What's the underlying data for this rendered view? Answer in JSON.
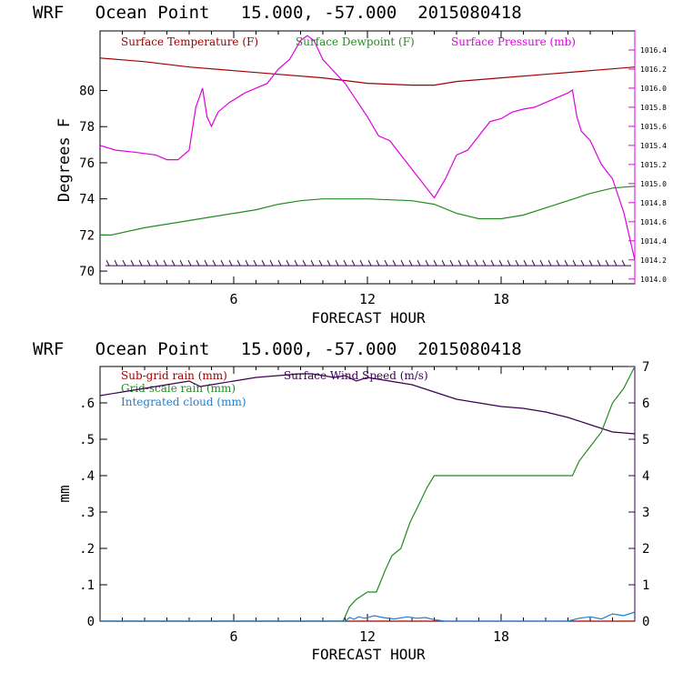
{
  "colors": {
    "temperature": "#a00000",
    "dewpoint": "#228b22",
    "pressure": "#e000e0",
    "subgrid": "#a00000",
    "gridscale": "#228b22",
    "cloud": "#1f7fd0",
    "wind": "#3a0050",
    "barbs": "#3a0050",
    "axis": "#000000"
  },
  "chart_data": [
    {
      "type": "line",
      "title": "WRF   Ocean Point   15.000, -57.000  2015080418",
      "xlabel": "FORECAST HOUR",
      "ylabel": "Degrees F",
      "xlim": [
        0,
        24
      ],
      "ylim": [
        69.3,
        83.3
      ],
      "y2lim": [
        1013.95,
        1016.6
      ],
      "x_ticks": [
        6,
        12,
        18
      ],
      "y_ticks": [
        70,
        72,
        74,
        76,
        78,
        80
      ],
      "y2_ticks": [
        "1014.0",
        "1014.2",
        "1014.4",
        "1014.6",
        "1014.8",
        "1015.0",
        "1015.2",
        "1015.4",
        "1015.6",
        "1015.8",
        "1016.0",
        "1016.2",
        "1016.4"
      ],
      "legend": [
        "Surface Temperature (F)",
        "Surface Dewpoint (F)",
        "Surface Pressure (mb)"
      ],
      "series": [
        {
          "name": "Surface Temperature (F)",
          "axis": "left",
          "x": [
            0,
            2,
            4,
            6,
            8,
            10,
            12,
            14,
            15,
            16,
            18,
            20,
            22,
            24
          ],
          "y": [
            81.8,
            81.6,
            81.3,
            81.1,
            80.9,
            80.7,
            80.4,
            80.3,
            80.3,
            80.5,
            80.7,
            80.9,
            81.1,
            81.3
          ]
        },
        {
          "name": "Surface Dewpoint (F)",
          "axis": "left",
          "x": [
            0,
            0.5,
            2,
            4,
            5,
            6,
            7,
            8,
            9,
            10,
            12,
            14,
            15,
            16,
            17,
            18,
            19,
            20,
            21,
            22,
            23,
            24
          ],
          "y": [
            72.0,
            72.0,
            72.4,
            72.8,
            73.0,
            73.2,
            73.4,
            73.7,
            73.9,
            74.0,
            74.0,
            73.9,
            73.7,
            73.2,
            72.9,
            72.9,
            73.1,
            73.5,
            73.9,
            74.3,
            74.6,
            74.7
          ]
        },
        {
          "name": "Surface Pressure (mb)",
          "axis": "right",
          "x": [
            0,
            0.7,
            1.5,
            2.5,
            3,
            3.5,
            4,
            4.3,
            4.6,
            4.8,
            5,
            5.3,
            5.8,
            6.5,
            7,
            7.5,
            8,
            8.5,
            9,
            9.3,
            9.6,
            10,
            11,
            12,
            12.5,
            13,
            14,
            15,
            15.5,
            16,
            16.5,
            17,
            17.5,
            18,
            18.5,
            19,
            19.5,
            20,
            20.5,
            21,
            21.2,
            21.4,
            21.6,
            22,
            22.5,
            23,
            23.5,
            24
          ],
          "y": [
            1015.4,
            1015.35,
            1015.33,
            1015.3,
            1015.25,
            1015.25,
            1015.35,
            1015.8,
            1016.0,
            1015.7,
            1015.6,
            1015.75,
            1015.85,
            1015.95,
            1016.0,
            1016.05,
            1016.2,
            1016.3,
            1016.5,
            1016.55,
            1016.5,
            1016.3,
            1016.05,
            1015.7,
            1015.5,
            1015.45,
            1015.15,
            1014.85,
            1015.05,
            1015.3,
            1015.35,
            1015.5,
            1015.65,
            1015.68,
            1015.75,
            1015.78,
            1015.8,
            1015.85,
            1015.9,
            1015.95,
            1015.98,
            1015.7,
            1015.55,
            1015.45,
            1015.2,
            1015.05,
            1014.7,
            1014.2
          ]
        }
      ]
    },
    {
      "type": "line",
      "title": "WRF   Ocean Point   15.000, -57.000  2015080418",
      "xlabel": "FORECAST HOUR",
      "ylabel": "mm",
      "xlim": [
        0,
        24
      ],
      "ylim": [
        0,
        0.7
      ],
      "y2lim": [
        0,
        7.0
      ],
      "x_ticks": [
        6,
        12,
        18
      ],
      "y_ticks": [
        0,
        0.1,
        0.2,
        0.3,
        0.4,
        0.5,
        0.6
      ],
      "y_tick_labels": [
        "0",
        ".1",
        ".2",
        ".3",
        ".4",
        ".5",
        ".6"
      ],
      "y2_ticks": [
        0,
        1,
        2,
        3,
        4,
        5,
        6,
        7
      ],
      "legend": [
        "Sub-grid rain (mm)",
        "Grid-scale rain (mm)",
        "Integrated cloud (mm)",
        "Surface Wind Speed (m/s)"
      ],
      "series": [
        {
          "name": "Surface Wind Speed (m/s)",
          "axis": "right",
          "x": [
            0,
            1,
            2,
            3,
            4,
            4.5,
            5,
            6,
            7,
            8,
            9,
            9.5,
            10,
            10.5,
            11,
            11.5,
            12,
            13,
            14,
            15,
            16,
            17,
            18,
            19,
            20,
            21,
            22,
            23,
            24
          ],
          "y": [
            6.2,
            6.3,
            6.4,
            6.5,
            6.6,
            6.45,
            6.5,
            6.6,
            6.7,
            6.75,
            6.8,
            6.8,
            6.75,
            6.7,
            6.75,
            6.6,
            6.7,
            6.6,
            6.5,
            6.3,
            6.1,
            6.0,
            5.9,
            5.85,
            5.75,
            5.6,
            5.4,
            5.2,
            5.15
          ]
        },
        {
          "name": "Grid-scale rain (mm)",
          "axis": "left",
          "x": [
            0,
            10.9,
            11.2,
            11.5,
            12.0,
            12.4,
            12.8,
            13.1,
            13.5,
            13.9,
            14.3,
            14.7,
            15.0,
            15.5,
            16,
            17,
            18,
            19,
            20,
            21.2,
            21.5,
            22,
            22.5,
            23,
            23.5,
            24
          ],
          "y": [
            0,
            0,
            0.04,
            0.06,
            0.08,
            0.08,
            0.14,
            0.18,
            0.2,
            0.27,
            0.32,
            0.37,
            0.4,
            0.4,
            0.4,
            0.4,
            0.4,
            0.4,
            0.4,
            0.4,
            0.44,
            0.48,
            0.52,
            0.6,
            0.64,
            0.7
          ]
        },
        {
          "name": "Sub-grid rain (mm)",
          "axis": "left",
          "x": [
            0,
            24
          ],
          "y": [
            0,
            0
          ]
        },
        {
          "name": "Integrated cloud (mm)",
          "axis": "left",
          "x": [
            0,
            11,
            11.2,
            11.4,
            11.6,
            11.9,
            12.3,
            12.7,
            13.2,
            13.8,
            14.2,
            14.6,
            15.0,
            15.5,
            21,
            21.5,
            22,
            22.5,
            23,
            23.5,
            24
          ],
          "y": [
            0,
            0,
            0.01,
            0.005,
            0.012,
            0.008,
            0.015,
            0.01,
            0.006,
            0.012,
            0.008,
            0.01,
            0.004,
            0,
            0,
            0.008,
            0.012,
            0.006,
            0.02,
            0.015,
            0.025
          ]
        }
      ]
    }
  ]
}
